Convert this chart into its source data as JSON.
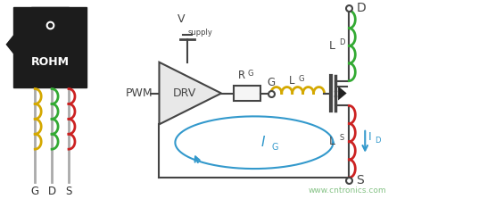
{
  "bg_color": "#ffffff",
  "rohm_body_color": "#1c1c1c",
  "rohm_text_color": "#ffffff",
  "coil_g_color": "#d4a800",
  "coil_d_color": "#33aa33",
  "coil_s_color": "#cc2222",
  "pin_color": "#aaaaaa",
  "circuit_line_color": "#444444",
  "inductor_lg_color": "#d4a800",
  "inductor_ld_color": "#33aa33",
  "inductor_ls_color": "#cc2222",
  "loop_color": "#3399cc",
  "watermark_color": "#77bb77",
  "watermark_text": "www.cntronics.com",
  "label_g": "G",
  "label_d": "D",
  "label_s": "S",
  "rohm_label": "ROHM",
  "pwm_label": "PWM",
  "drv_label": "DRV",
  "rg_label": "R",
  "rg_sub": "G",
  "lg_label": "L",
  "lg_sub": "G",
  "ld_label": "L",
  "ld_sub": "D",
  "ls_label": "L",
  "ls_sub": "S",
  "vsupply_label": "V",
  "vsupply_sub": "supply",
  "ig_label": "I",
  "ig_sub": "G",
  "id_label": "I",
  "id_sub": "D"
}
